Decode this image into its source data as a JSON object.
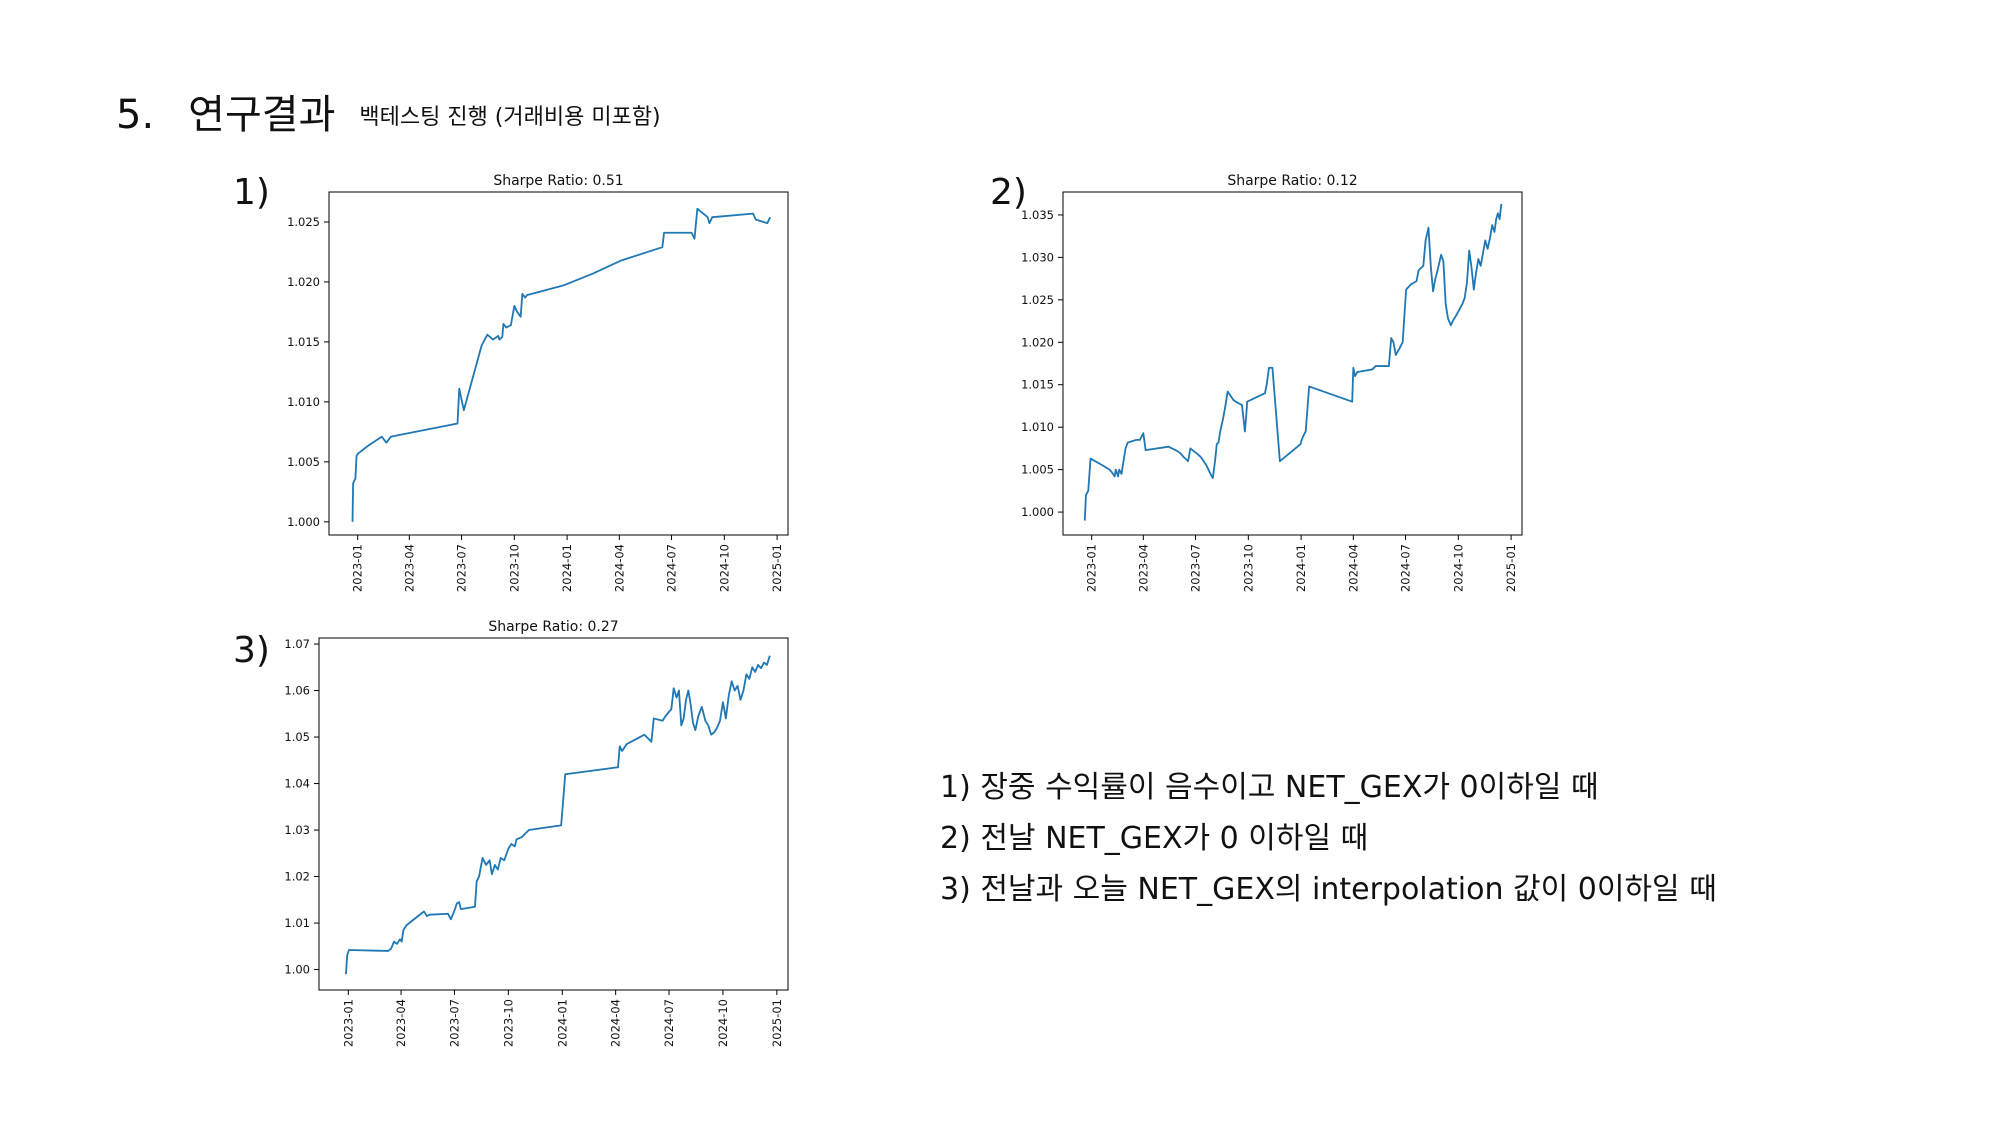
{
  "header": {
    "number": "5.",
    "title": "연구결과",
    "subtitle": "백테스팅 진행 (거래비용 미포함)"
  },
  "panel_labels": [
    "1)",
    "2)",
    "3)"
  ],
  "notes": [
    "1) 장중 수익률이 음수이고 NET_GEX가 0이하일 때",
    "2) 전날 NET_GEX가 0 이하일 때",
    "3) 전날과 오늘 NET_GEX의 interpolation 값이 0이하일 때"
  ],
  "colors": {
    "line": "#1f77b4",
    "axis": "#000000",
    "text": "#111111"
  },
  "chart_data": [
    {
      "type": "line",
      "title": "Sharpe Ratio: 0.51",
      "xlabel": "",
      "ylabel": "",
      "grid": false,
      "x_ticks": [
        "2023-01",
        "2023-04",
        "2023-07",
        "2023-10",
        "2024-01",
        "2024-04",
        "2024-07",
        "2024-10",
        "2025-01"
      ],
      "xlim": [
        "2022-11-12",
        "2025-01-20"
      ],
      "y_ticks": [
        "1.000",
        "1.005",
        "1.010",
        "1.015",
        "1.020",
        "1.025"
      ],
      "ylim": [
        0.9989,
        1.0275
      ],
      "series": [
        {
          "x": [
            "2022-12-23",
            "2022-12-24",
            "2022-12-28",
            "2022-12-30",
            "2023-01-02",
            "2023-01-18",
            "2023-02-12",
            "2023-02-20",
            "2023-02-28",
            "2023-06-24",
            "2023-06-27",
            "2023-07-05",
            "2023-08-05",
            "2023-08-15",
            "2023-08-25",
            "2023-09-03",
            "2023-09-05",
            "2023-09-10",
            "2023-09-12",
            "2023-09-17",
            "2023-09-25",
            "2023-10-01",
            "2023-10-06",
            "2023-10-12",
            "2023-10-15",
            "2023-10-20",
            "2023-10-23",
            "2023-12-25",
            "2024-02-15",
            "2024-04-05",
            "2024-06-15",
            "2024-06-18",
            "2024-08-05",
            "2024-08-10",
            "2024-08-15",
            "2024-09-02",
            "2024-09-05",
            "2024-09-10",
            "2024-11-20",
            "2024-11-25",
            "2024-12-15",
            "2024-12-20"
          ],
          "y": [
            1.0,
            1.0032,
            1.0036,
            1.0055,
            1.0057,
            1.0063,
            1.0071,
            1.0066,
            1.0071,
            1.0082,
            1.0111,
            1.0093,
            1.0147,
            1.0156,
            1.0152,
            1.0155,
            1.0152,
            1.0154,
            1.0165,
            1.0162,
            1.0164,
            1.018,
            1.0175,
            1.0171,
            1.019,
            1.0187,
            1.0189,
            1.0197,
            1.0207,
            1.0218,
            1.0229,
            1.0241,
            1.0241,
            1.0236,
            1.0261,
            1.0254,
            1.0249,
            1.0254,
            1.0257,
            1.0252,
            1.0249,
            1.0254
          ]
        }
      ]
    },
    {
      "type": "line",
      "title": "Sharpe Ratio: 0.12",
      "xlabel": "",
      "ylabel": "",
      "grid": false,
      "x_ticks": [
        "2023-01",
        "2023-04",
        "2023-07",
        "2023-10",
        "2024-01",
        "2024-04",
        "2024-07",
        "2024-10",
        "2025-01"
      ],
      "xlim": [
        "2022-11-12",
        "2025-01-20"
      ],
      "y_ticks": [
        "1.000",
        "1.005",
        "1.010",
        "1.015",
        "1.020",
        "1.025",
        "1.030",
        "1.035"
      ],
      "ylim": [
        0.9973,
        1.0377
      ],
      "series": [
        {
          "x": [
            "2022-12-20",
            "2022-12-22",
            "2022-12-26",
            "2022-12-30",
            "2023-01-20",
            "2023-02-01",
            "2023-02-05",
            "2023-02-10",
            "2023-02-12",
            "2023-02-16",
            "2023-02-18",
            "2023-02-22",
            "2023-03-01",
            "2023-03-05",
            "2023-03-20",
            "2023-03-26",
            "2023-04-01",
            "2023-04-05",
            "2023-05-15",
            "2023-05-30",
            "2023-06-05",
            "2023-06-10",
            "2023-06-18",
            "2023-06-22",
            "2023-07-05",
            "2023-07-10",
            "2023-07-20",
            "2023-07-27",
            "2023-07-31",
            "2023-08-04",
            "2023-08-07",
            "2023-08-10",
            "2023-08-13",
            "2023-08-18",
            "2023-08-22",
            "2023-08-26",
            "2023-09-02",
            "2023-09-05",
            "2023-09-09",
            "2023-09-20",
            "2023-09-25",
            "2023-09-27",
            "2023-09-29",
            "2023-10-30",
            "2023-11-02",
            "2023-11-06",
            "2023-11-12",
            "2023-11-25",
            "2023-12-31",
            "2024-01-02",
            "2024-01-05",
            "2024-01-09",
            "2024-01-15",
            "2024-03-30",
            "2024-04-01",
            "2024-04-04",
            "2024-04-08",
            "2024-05-04",
            "2024-05-10",
            "2024-06-02",
            "2024-06-06",
            "2024-06-10",
            "2024-06-14",
            "2024-06-18",
            "2024-06-20",
            "2024-06-22",
            "2024-06-26",
            "2024-07-02",
            "2024-07-10",
            "2024-07-15",
            "2024-07-20",
            "2024-07-24",
            "2024-08-01",
            "2024-08-05",
            "2024-08-10",
            "2024-08-14",
            "2024-08-18",
            "2024-08-22",
            "2024-08-26",
            "2024-09-01",
            "2024-09-05",
            "2024-09-09",
            "2024-09-13",
            "2024-09-18",
            "2024-09-22",
            "2024-09-26",
            "2024-09-30",
            "2024-10-04",
            "2024-10-08",
            "2024-10-12",
            "2024-10-16",
            "2024-10-20",
            "2024-10-24",
            "2024-10-28",
            "2024-11-01",
            "2024-11-05",
            "2024-11-09",
            "2024-11-13",
            "2024-11-17",
            "2024-11-21",
            "2024-11-25",
            "2024-11-29",
            "2024-12-03",
            "2024-12-06",
            "2024-12-09",
            "2024-12-12",
            "2024-12-15"
          ],
          "y": [
            0.999,
            1.002,
            1.0025,
            1.0063,
            1.0055,
            1.005,
            1.0047,
            1.0042,
            1.005,
            1.0042,
            1.005,
            1.0045,
            1.0075,
            1.0082,
            1.0085,
            1.0085,
            1.0093,
            1.0073,
            1.0077,
            1.0072,
            1.0069,
            1.0065,
            1.006,
            1.0075,
            1.0068,
            1.0065,
            1.0055,
            1.0045,
            1.004,
            1.006,
            1.008,
            1.0082,
            1.0095,
            1.011,
            1.0125,
            1.0142,
            1.0135,
            1.0132,
            1.013,
            1.0126,
            1.0095,
            1.011,
            1.013,
            1.014,
            1.015,
            1.017,
            1.017,
            1.006,
            1.008,
            1.0085,
            1.009,
            1.0095,
            1.0148,
            1.013,
            1.017,
            1.016,
            1.0165,
            1.0168,
            1.0172,
            1.0172,
            1.0205,
            1.02,
            1.0185,
            1.019,
            1.0192,
            1.0195,
            1.02,
            1.0262,
            1.0268,
            1.027,
            1.0272,
            1.0285,
            1.029,
            1.032,
            1.0335,
            1.029,
            1.026,
            1.0275,
            1.0285,
            1.0303,
            1.0295,
            1.0245,
            1.0228,
            1.022,
            1.0226,
            1.023,
            1.0235,
            1.024,
            1.0245,
            1.0252,
            1.027,
            1.0308,
            1.0288,
            1.0262,
            1.0282,
            1.0298,
            1.029,
            1.0305,
            1.032,
            1.031,
            1.0322,
            1.0338,
            1.033,
            1.0345,
            1.0352,
            1.0345,
            1.0363
          ]
        }
      ]
    },
    {
      "type": "line",
      "title": "Sharpe Ratio: 0.27",
      "xlabel": "",
      "ylabel": "",
      "grid": false,
      "x_ticks": [
        "2023-01",
        "2023-04",
        "2023-07",
        "2023-10",
        "2024-01",
        "2024-04",
        "2024-07",
        "2024-10",
        "2025-01"
      ],
      "xlim": [
        "2022-11-12",
        "2025-01-20"
      ],
      "y_ticks": [
        "1.00",
        "1.01",
        "1.02",
        "1.03",
        "1.04",
        "1.05",
        "1.06",
        "1.07"
      ],
      "ylim": [
        0.9956,
        1.0713
      ],
      "series": [
        {
          "x": [
            "2022-12-28",
            "2022-12-30",
            "2023-01-02",
            "2023-03-10",
            "2023-03-15",
            "2023-03-20",
            "2023-03-25",
            "2023-03-30",
            "2023-04-02",
            "2023-04-05",
            "2023-04-10",
            "2023-05-05",
            "2023-05-10",
            "2023-05-15",
            "2023-05-20",
            "2023-06-20",
            "2023-06-25",
            "2023-07-02",
            "2023-07-05",
            "2023-07-09",
            "2023-07-12",
            "2023-08-05",
            "2023-08-08",
            "2023-08-12",
            "2023-08-18",
            "2023-08-24",
            "2023-08-30",
            "2023-09-03",
            "2023-09-08",
            "2023-09-13",
            "2023-09-18",
            "2023-09-24",
            "2023-10-01",
            "2023-10-06",
            "2023-10-12",
            "2023-10-15",
            "2023-10-24",
            "2023-11-05",
            "2023-12-01",
            "2023-12-30",
            "2024-01-01",
            "2024-01-06",
            "2024-04-05",
            "2024-04-08",
            "2024-04-12",
            "2024-04-20",
            "2024-05-20",
            "2024-06-01",
            "2024-06-05",
            "2024-06-20",
            "2024-06-25",
            "2024-07-05",
            "2024-07-09",
            "2024-07-14",
            "2024-07-18",
            "2024-07-22",
            "2024-07-26",
            "2024-07-30",
            "2024-08-03",
            "2024-08-07",
            "2024-08-11",
            "2024-08-15",
            "2024-08-20",
            "2024-08-26",
            "2024-09-01",
            "2024-09-06",
            "2024-09-11",
            "2024-09-16",
            "2024-09-21",
            "2024-09-26",
            "2024-10-01",
            "2024-10-06",
            "2024-10-11",
            "2024-10-16",
            "2024-10-21",
            "2024-10-26",
            "2024-10-31",
            "2024-11-05",
            "2024-11-10",
            "2024-11-15",
            "2024-11-20",
            "2024-11-25",
            "2024-11-30",
            "2024-12-05",
            "2024-12-10",
            "2024-12-15",
            "2024-12-20"
          ],
          "y": [
            0.999,
            1.003,
            1.0042,
            1.004,
            1.0045,
            1.006,
            1.0055,
            1.0065,
            1.006,
            1.0085,
            1.0095,
            1.012,
            1.0125,
            1.0115,
            1.0118,
            1.012,
            1.0108,
            1.013,
            1.0142,
            1.0145,
            1.013,
            1.0135,
            1.019,
            1.02,
            1.024,
            1.0225,
            1.0235,
            1.0205,
            1.0225,
            1.0215,
            1.024,
            1.0235,
            1.026,
            1.027,
            1.0265,
            1.028,
            1.0285,
            1.03,
            1.0305,
            1.031,
            1.034,
            1.042,
            1.0435,
            1.048,
            1.047,
            1.0485,
            1.0505,
            1.049,
            1.054,
            1.0535,
            1.0545,
            1.056,
            1.0605,
            1.0585,
            1.06,
            1.0525,
            1.054,
            1.058,
            1.06,
            1.057,
            1.053,
            1.0515,
            1.0545,
            1.0565,
            1.0535,
            1.0525,
            1.0505,
            1.051,
            1.052,
            1.0535,
            1.0575,
            1.054,
            1.059,
            1.062,
            1.06,
            1.061,
            1.058,
            1.06,
            1.0635,
            1.0625,
            1.065,
            1.064,
            1.0655,
            1.0648,
            1.066,
            1.0655,
            1.0675
          ]
        }
      ]
    }
  ]
}
